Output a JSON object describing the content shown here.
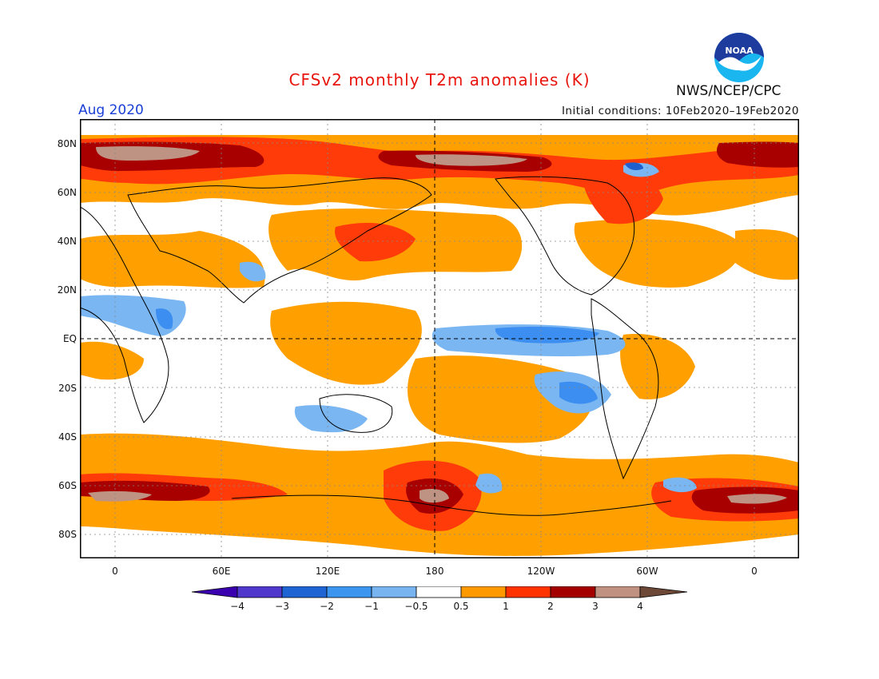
{
  "title": "CFSv2 monthly T2m anomalies (K)",
  "month_label": "Aug 2020",
  "initial_conditions": "Initial conditions: 10Feb2020–19Feb2020",
  "agency": "NWS/NCEP/CPC",
  "logo": {
    "text": "NOAA",
    "colors": {
      "outer": "#1ab6f0",
      "inner": "#1e3c9e",
      "bird": "#ffffff"
    }
  },
  "latitude_labels": [
    "80N",
    "60N",
    "40N",
    "20N",
    "EQ",
    "20S",
    "40S",
    "60S",
    "80S"
  ],
  "longitude_labels": [
    "0",
    "60E",
    "120E",
    "180",
    "120W",
    "60W",
    "0"
  ],
  "colorbar": {
    "labels": [
      "−4",
      "−3",
      "−2",
      "−1",
      "−0.5",
      "0.5",
      "1",
      "2",
      "3",
      "4"
    ],
    "colors": [
      "#3a00b0",
      "#5038cc",
      "#1e64d2",
      "#3c96f0",
      "#78b4f0",
      "#ffffff",
      "#ff9900",
      "#ff3300",
      "#a50000",
      "#c09080",
      "#6e4837"
    ]
  },
  "colors": {
    "title": "#e8140e",
    "month": "#1a3fd6",
    "warm1": "#ffa000",
    "warm2": "#ff3b0a",
    "warm3": "#a80000",
    "warm4": "#bf9383",
    "warm5": "#6f4a3a",
    "cool1": "#7ab6f2",
    "cool2": "#3c8ef0",
    "cool3": "#1f5fd0"
  }
}
